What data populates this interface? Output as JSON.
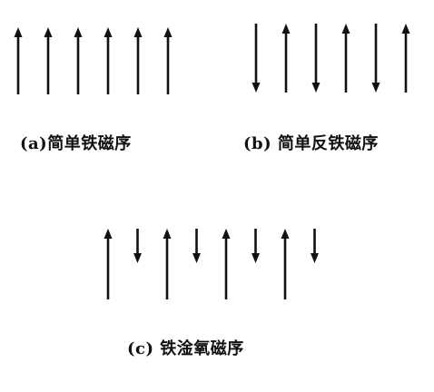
{
  "colors": {
    "arrow": "#111111",
    "background": "#ffffff"
  },
  "panels": [
    {
      "id": "a",
      "caption": "(a)简单铁磁序",
      "arrows": [
        "up",
        "up",
        "up",
        "up",
        "up",
        "up"
      ],
      "moment": [
        "long",
        "long",
        "long",
        "long",
        "long",
        "long"
      ]
    },
    {
      "id": "b",
      "caption": "(b) 简单反铁磁序",
      "arrows": [
        "down",
        "up",
        "down",
        "up",
        "down",
        "up"
      ],
      "moment": [
        "long",
        "long",
        "long",
        "long",
        "long",
        "long"
      ]
    },
    {
      "id": "c",
      "caption": "(c) 铁淦氧磁序",
      "arrows": [
        "up",
        "down",
        "up",
        "down",
        "up",
        "down",
        "up",
        "down"
      ],
      "moment": [
        "long",
        "short",
        "long",
        "short",
        "long",
        "short",
        "long",
        "short"
      ]
    }
  ]
}
